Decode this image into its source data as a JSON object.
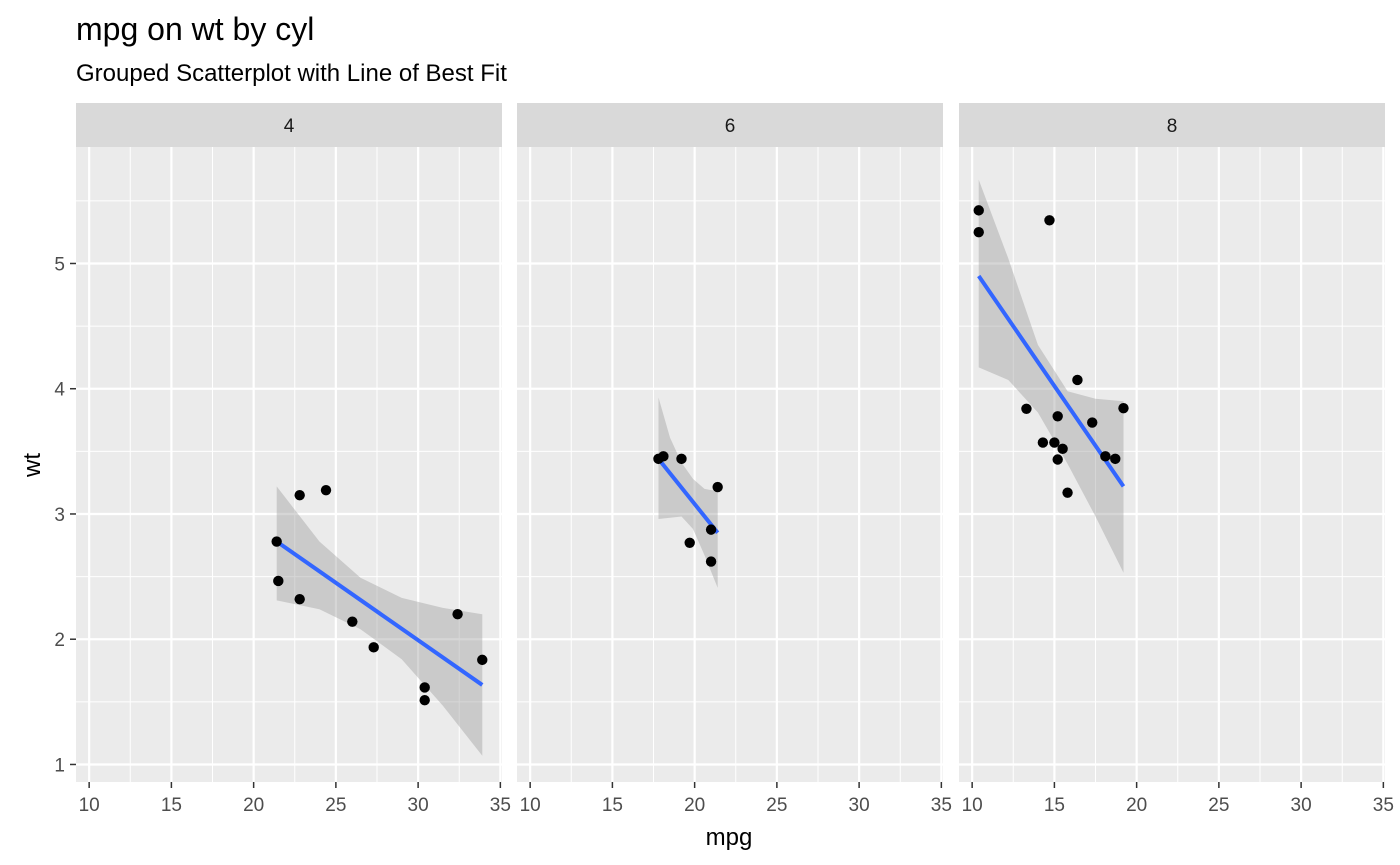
{
  "chart_data": {
    "type": "scatter",
    "title": "mpg on wt by cyl",
    "subtitle": "Grouped Scatterplot with Line of Best Fit",
    "xlabel": "mpg",
    "ylabel": "wt",
    "xlim": [
      9.2,
      35.1
    ],
    "ylim": [
      0.86,
      5.93
    ],
    "x_ticks": [
      10,
      15,
      20,
      25,
      30,
      35
    ],
    "y_ticks": [
      1,
      2,
      3,
      4,
      5
    ],
    "grid": true,
    "colors": {
      "panel_bg": "#ebebeb",
      "strip_bg": "#d9d9d9",
      "grid": "#ffffff",
      "points": "#000000",
      "fit_line": "#3366ff",
      "ribbon": "#999999"
    },
    "facets": [
      {
        "label": "4",
        "points": [
          {
            "x": 22.8,
            "y": 2.32
          },
          {
            "x": 24.4,
            "y": 3.19
          },
          {
            "x": 22.8,
            "y": 3.15
          },
          {
            "x": 32.4,
            "y": 2.2
          },
          {
            "x": 30.4,
            "y": 1.615
          },
          {
            "x": 33.9,
            "y": 1.835
          },
          {
            "x": 21.5,
            "y": 2.465
          },
          {
            "x": 27.3,
            "y": 1.935
          },
          {
            "x": 26.0,
            "y": 2.14
          },
          {
            "x": 30.4,
            "y": 1.513
          },
          {
            "x": 21.4,
            "y": 2.78
          }
        ],
        "fit": {
          "x": [
            21.4,
            33.9
          ],
          "y": [
            2.78,
            1.635
          ]
        },
        "ribbon": {
          "x": [
            21.4,
            24.0,
            26.5,
            29.0,
            31.5,
            33.9
          ],
          "lower": [
            2.31,
            2.24,
            2.08,
            1.84,
            1.47,
            1.07
          ],
          "upper": [
            3.22,
            2.78,
            2.49,
            2.33,
            2.25,
            2.2
          ]
        }
      },
      {
        "label": "6",
        "points": [
          {
            "x": 21.0,
            "y": 2.62
          },
          {
            "x": 21.0,
            "y": 2.875
          },
          {
            "x": 21.4,
            "y": 3.215
          },
          {
            "x": 18.1,
            "y": 3.46
          },
          {
            "x": 19.2,
            "y": 3.44
          },
          {
            "x": 17.8,
            "y": 3.44
          },
          {
            "x": 19.7,
            "y": 2.77
          }
        ],
        "fit": {
          "x": [
            17.8,
            21.4
          ],
          "y": [
            3.44,
            2.85
          ]
        },
        "ribbon": {
          "x": [
            17.8,
            18.5,
            19.2,
            19.9,
            20.6,
            21.4
          ],
          "lower": [
            2.96,
            2.97,
            2.98,
            2.88,
            2.67,
            2.41
          ],
          "upper": [
            3.93,
            3.61,
            3.41,
            3.28,
            3.2,
            3.18
          ]
        }
      },
      {
        "label": "8",
        "points": [
          {
            "x": 18.7,
            "y": 3.44
          },
          {
            "x": 18.1,
            "y": 3.46
          },
          {
            "x": 14.3,
            "y": 3.57
          },
          {
            "x": 16.4,
            "y": 4.07
          },
          {
            "x": 17.3,
            "y": 3.73
          },
          {
            "x": 15.2,
            "y": 3.78
          },
          {
            "x": 10.4,
            "y": 5.25
          },
          {
            "x": 10.4,
            "y": 5.424
          },
          {
            "x": 14.7,
            "y": 5.345
          },
          {
            "x": 15.5,
            "y": 3.52
          },
          {
            "x": 15.2,
            "y": 3.435
          },
          {
            "x": 13.3,
            "y": 3.84
          },
          {
            "x": 19.2,
            "y": 3.845
          },
          {
            "x": 15.8,
            "y": 3.17
          },
          {
            "x": 15.0,
            "y": 3.57
          }
        ],
        "fit": {
          "x": [
            10.4,
            19.2
          ],
          "y": [
            4.9,
            3.22
          ]
        },
        "ribbon": {
          "x": [
            10.4,
            12.2,
            14.0,
            15.8,
            17.5,
            19.2
          ],
          "lower": [
            4.17,
            4.07,
            3.81,
            3.4,
            2.98,
            2.53
          ],
          "upper": [
            5.67,
            5.04,
            4.35,
            3.98,
            3.92,
            3.9
          ]
        }
      }
    ]
  }
}
